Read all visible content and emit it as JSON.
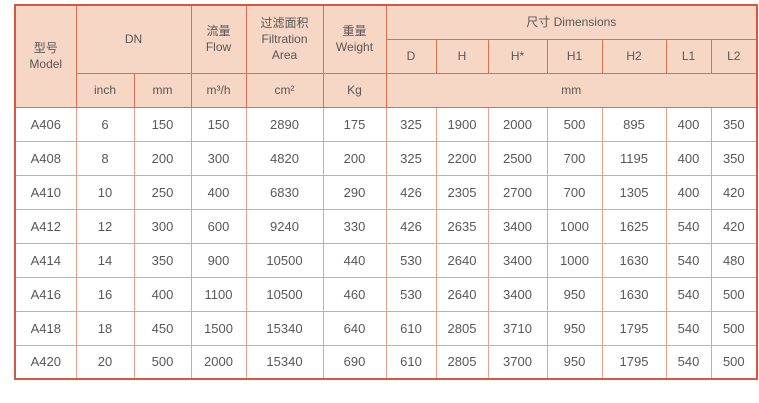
{
  "table": {
    "header": {
      "model_zh": "型号",
      "model_en": "Model",
      "dn": "DN",
      "flow_zh": "流量",
      "flow_en": "Flow",
      "filtration_zh": "过滤面积",
      "filtration_en_line1": "Filtration",
      "filtration_en_line2": "Area",
      "weight_zh": "重量",
      "weight_en": "Weight",
      "dimensions": "尺寸 Dimensions",
      "dim_columns": [
        "D",
        "H",
        "H*",
        "H1",
        "H2",
        "L1",
        "L2"
      ],
      "unit_inch": "inch",
      "unit_mm": "mm",
      "unit_flow": "m³/h",
      "unit_area": "cm²",
      "unit_weight": "Kg",
      "unit_dims": "mm"
    },
    "rows": [
      [
        "A406",
        "6",
        "150",
        "150",
        "2890",
        "175",
        "325",
        "1900",
        "2000",
        "500",
        "895",
        "400",
        "350"
      ],
      [
        "A408",
        "8",
        "200",
        "300",
        "4820",
        "200",
        "325",
        "2200",
        "2500",
        "700",
        "1195",
        "400",
        "350"
      ],
      [
        "A410",
        "10",
        "250",
        "400",
        "6830",
        "290",
        "426",
        "2305",
        "2700",
        "700",
        "1305",
        "400",
        "420"
      ],
      [
        "A412",
        "12",
        "300",
        "600",
        "9240",
        "330",
        "426",
        "2635",
        "3400",
        "1000",
        "1625",
        "540",
        "420"
      ],
      [
        "A414",
        "14",
        "350",
        "900",
        "10500",
        "440",
        "530",
        "2640",
        "3400",
        "1000",
        "1630",
        "540",
        "480"
      ],
      [
        "A416",
        "16",
        "400",
        "1100",
        "10500",
        "460",
        "530",
        "2640",
        "3400",
        "950",
        "1630",
        "540",
        "500"
      ],
      [
        "A418",
        "18",
        "450",
        "1500",
        "15340",
        "640",
        "610",
        "2805",
        "3710",
        "950",
        "1795",
        "540",
        "500"
      ],
      [
        "A420",
        "20",
        "500",
        "2000",
        "15340",
        "690",
        "610",
        "2805",
        "3700",
        "950",
        "1795",
        "540",
        "500"
      ]
    ],
    "colors": {
      "header_bg": "#f6d6c4",
      "header_border": "#df6f4b",
      "body_border": "#ee9d8d",
      "outer_border": "#d75743",
      "text": "#595757"
    }
  }
}
